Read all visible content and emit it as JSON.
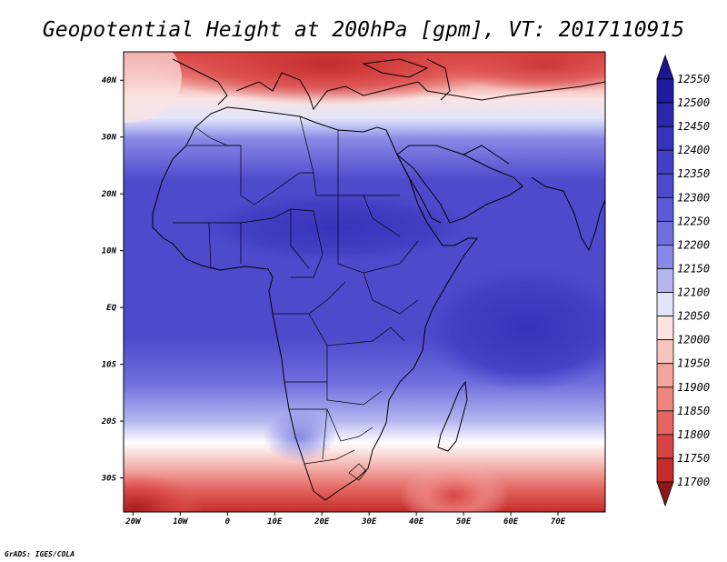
{
  "title": "Geopotential Height at 200hPa [gpm], VT: 2017110915",
  "credit": "GrADS: IGES/COLA",
  "map": {
    "lat_labels": [
      "40N",
      "30N",
      "20N",
      "10N",
      "EQ",
      "10S",
      "20S",
      "30S"
    ],
    "lat_values": [
      40,
      30,
      20,
      10,
      0,
      -10,
      -20,
      -30
    ],
    "lon_labels": [
      "20W",
      "10W",
      "0",
      "10E",
      "20E",
      "30E",
      "40E",
      "50E",
      "60E",
      "70E"
    ],
    "lon_values": [
      -20,
      -10,
      0,
      10,
      20,
      30,
      40,
      50,
      60,
      70
    ],
    "lon_range": [
      -22,
      80
    ],
    "lat_range": [
      -36,
      45
    ]
  },
  "colorbar": {
    "labels": [
      "12550",
      "12500",
      "12450",
      "12400",
      "12350",
      "12300",
      "12250",
      "12200",
      "12150",
      "12100",
      "12050",
      "12000",
      "11950",
      "11900",
      "11850",
      "11800",
      "11750",
      "11700"
    ],
    "colors": [
      "#1f1a9e",
      "#2b27ad",
      "#3733bb",
      "#423fc4",
      "#4d4acc",
      "#5c5ad5",
      "#706fdd",
      "#8988e6",
      "#b3b4f0",
      "#e2e5fa",
      "#fbe4e2",
      "#f7c4c0",
      "#f3a49f",
      "#ee857f",
      "#e46561",
      "#d84444",
      "#c42c2c",
      "#a51d1d"
    ],
    "top_arrow_color": "#1a1490",
    "bottom_arrow_color": "#8e1616"
  }
}
